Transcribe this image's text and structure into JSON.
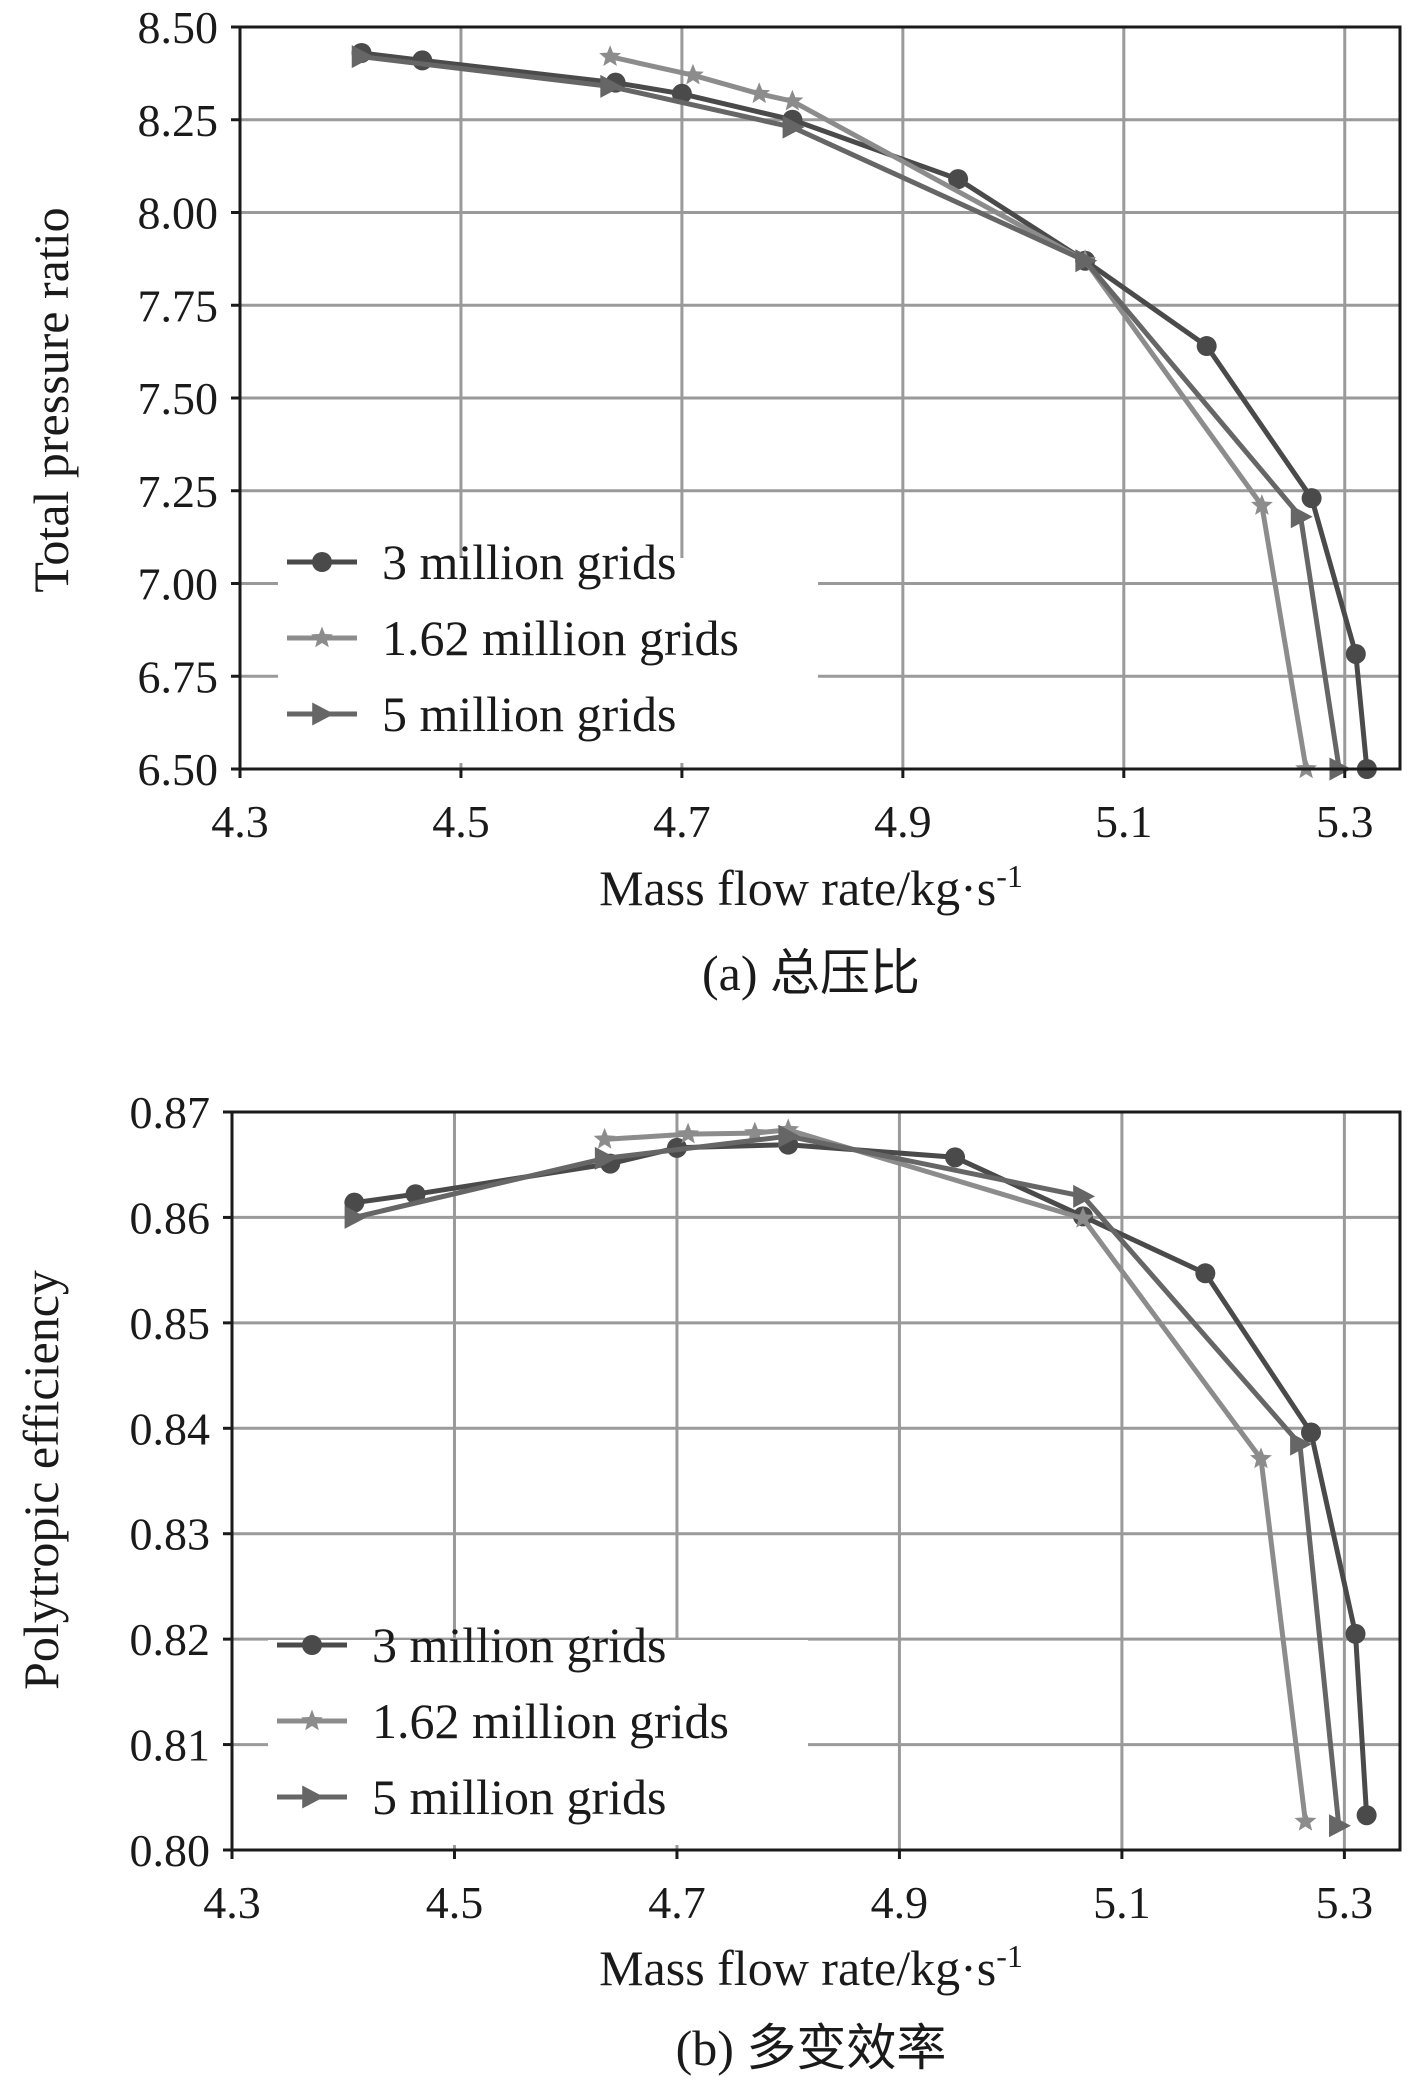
{
  "chart_data": [
    {
      "type": "line",
      "caption": "(a) 总压比",
      "xlabel": "Mass flow rate/kg·s",
      "xlabel_sup": "-1",
      "ylabel": "Total pressure ratio",
      "xlim": [
        4.3,
        5.35
      ],
      "ylim": [
        6.5,
        8.5
      ],
      "xticks": [
        "4.3",
        "4.5",
        "4.7",
        "4.9",
        "5.1",
        "5.3"
      ],
      "yticks": [
        "6.50",
        "6.75",
        "7.00",
        "7.25",
        "7.50",
        "7.75",
        "8.00",
        "8.25",
        "8.50"
      ],
      "grid": true,
      "legend_position": "lower-left",
      "series": [
        {
          "name": "3 million grids",
          "marker": "circle",
          "color": "#4a4a4a",
          "x": [
            4.41,
            4.465,
            4.64,
            4.7,
            4.8,
            4.95,
            5.065,
            5.175,
            5.27,
            5.31,
            5.32
          ],
          "y": [
            8.43,
            8.41,
            8.35,
            8.32,
            8.25,
            8.09,
            7.87,
            7.64,
            7.23,
            6.81,
            6.5
          ]
        },
        {
          "name": "1.62 million grids",
          "marker": "star",
          "color": "#8c8c8c",
          "x": [
            4.635,
            4.71,
            4.77,
            4.8,
            5.065,
            5.225,
            5.265
          ],
          "y": [
            8.42,
            8.37,
            8.32,
            8.3,
            7.87,
            7.21,
            6.5
          ]
        },
        {
          "name": "5 million grids",
          "marker": "triangle-right",
          "color": "#666666",
          "x": [
            4.41,
            4.635,
            4.8,
            5.065,
            5.26,
            5.295
          ],
          "y": [
            8.42,
            8.34,
            8.23,
            7.87,
            7.18,
            6.5
          ]
        }
      ]
    },
    {
      "type": "line",
      "caption": "(b) 多变效率",
      "xlabel": "Mass flow rate/kg·s",
      "xlabel_sup": "-1",
      "ylabel": "Polytropic efficiency",
      "xlim": [
        4.3,
        5.35
      ],
      "ylim": [
        0.8,
        0.87
      ],
      "xticks": [
        "4.3",
        "4.5",
        "4.7",
        "4.9",
        "5.1",
        "5.3"
      ],
      "yticks": [
        "0.80",
        "0.81",
        "0.82",
        "0.83",
        "0.84",
        "0.85",
        "0.86",
        "0.87"
      ],
      "grid": true,
      "legend_position": "lower-left",
      "series": [
        {
          "name": "3 million grids",
          "marker": "circle",
          "color": "#4a4a4a",
          "x": [
            4.41,
            4.465,
            4.64,
            4.7,
            4.8,
            4.95,
            5.065,
            5.175,
            5.27,
            5.31,
            5.32
          ],
          "y": [
            0.8614,
            0.8622,
            0.8651,
            0.8666,
            0.8669,
            0.8657,
            0.8601,
            0.8547,
            0.8396,
            0.8205,
            0.8033
          ]
        },
        {
          "name": "1.62 million grids",
          "marker": "star",
          "color": "#8c8c8c",
          "x": [
            4.635,
            4.71,
            4.77,
            4.8,
            5.065,
            5.225,
            5.265
          ],
          "y": [
            0.8674,
            0.8679,
            0.868,
            0.8683,
            0.8599,
            0.8371,
            0.8027
          ]
        },
        {
          "name": "5 million grids",
          "marker": "triangle-right",
          "color": "#666666",
          "x": [
            4.41,
            4.635,
            4.8,
            5.065,
            5.26,
            5.295
          ],
          "y": [
            0.86,
            0.8656,
            0.8677,
            0.862,
            0.8385,
            0.8023
          ]
        }
      ]
    }
  ]
}
